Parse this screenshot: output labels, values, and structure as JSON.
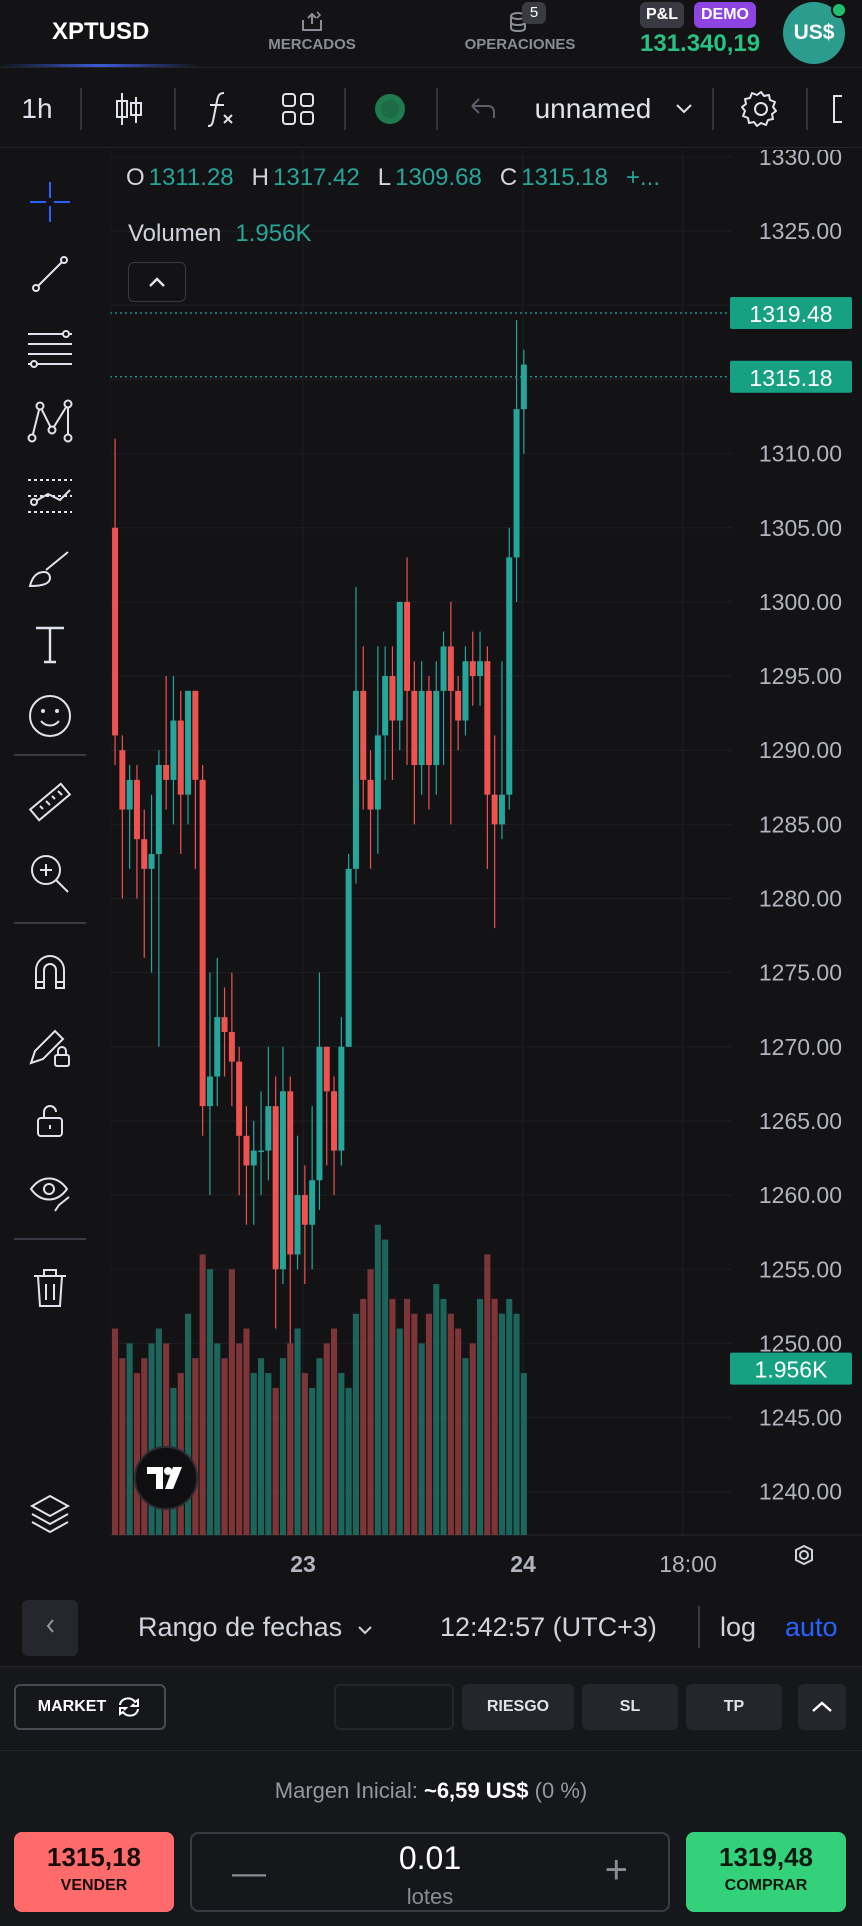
{
  "header": {
    "symbol": "XPTUSD",
    "tabs": [
      {
        "label": "MERCADOS",
        "icon": "markets-icon"
      },
      {
        "label": "OPERACIONES",
        "icon": "operations-icon",
        "badge": "5"
      }
    ],
    "pl_label": "P&L",
    "demo_label": "DEMO",
    "balance": "131.340,19",
    "currency_avatar": "US$"
  },
  "toolbar": {
    "interval": "1h",
    "layout_name": "unnamed"
  },
  "legend": {
    "o_label": "O",
    "o_value": "1311.28",
    "h_label": "H",
    "h_value": "1317.42",
    "l_label": "L",
    "l_value": "1309.68",
    "c_label": "C",
    "c_value": "1315.18",
    "more": "+...",
    "volume_label": "Volumen",
    "volume_value": "1.956K"
  },
  "price_tags": {
    "ask": "1319.48",
    "last": "1315.18",
    "volume": "1.956K"
  },
  "bottom_bar": {
    "date_range": "Rango de fechas",
    "clock": "12:42:57 (UTC+3)",
    "log": "log",
    "auto": "auto"
  },
  "order_panel": {
    "market_label": "MARKET",
    "riesgo_label": "RIESGO",
    "sl_label": "SL",
    "tp_label": "TP",
    "margin_label": "Margen Inicial:",
    "margin_value": "~6,59 US$",
    "margin_pct": "(0 %)",
    "sell_price": "1315,18",
    "sell_label": "VENDER",
    "buy_price": "1319,48",
    "buy_label": "COMPRAR",
    "quantity": "0.01",
    "quantity_unit": "lotes"
  },
  "colors": {
    "up": "#26a69a",
    "down": "#ef5350",
    "volume_up": "#1f6e63",
    "volume_down": "#8a3a3c",
    "accent_blue": "#2962ff",
    "balance_green": "#26c281",
    "sell_bg": "#ff6b6b",
    "buy_bg": "#33d17a"
  },
  "chart_data": {
    "type": "candlestick",
    "y_ticks": [
      "1330.00",
      "1325.00",
      "1310.00",
      "1305.00",
      "1300.00",
      "1295.00",
      "1290.00",
      "1285.00",
      "1280.00",
      "1275.00",
      "1270.00",
      "1265.00",
      "1260.00",
      "1255.00",
      "1250.00",
      "1245.00",
      "1240.00"
    ],
    "x_ticks": [
      "23",
      "24",
      "18:00"
    ],
    "ylim": [
      1239,
      1331
    ],
    "candles": [
      [
        1305,
        1291,
        1311,
        1289
      ],
      [
        1290,
        1286,
        1291,
        1280
      ],
      [
        1286,
        1288,
        1289,
        1282
      ],
      [
        1288,
        1284,
        1289,
        1280
      ],
      [
        1284,
        1282,
        1286,
        1276
      ],
      [
        1282,
        1283,
        1287,
        1275
      ],
      [
        1283,
        1289,
        1290,
        1270
      ],
      [
        1289,
        1288,
        1295,
        1286
      ],
      [
        1288,
        1292,
        1295,
        1285
      ],
      [
        1292,
        1287,
        1294,
        1283
      ],
      [
        1287,
        1294,
        1294,
        1285
      ],
      [
        1294,
        1288,
        1294,
        1282
      ],
      [
        1288,
        1266,
        1289,
        1264
      ],
      [
        1266,
        1268,
        1275,
        1260
      ],
      [
        1268,
        1272,
        1276,
        1266
      ],
      [
        1272,
        1271,
        1274,
        1268
      ],
      [
        1271,
        1269,
        1275,
        1266
      ],
      [
        1269,
        1264,
        1270,
        1260
      ],
      [
        1264,
        1262,
        1266,
        1258
      ],
      [
        1262,
        1263,
        1265,
        1258
      ],
      [
        1263,
        1263,
        1267,
        1260
      ],
      [
        1263,
        1266,
        1270,
        1261
      ],
      [
        1266,
        1255,
        1268,
        1251
      ],
      [
        1255,
        1267,
        1270,
        1254
      ],
      [
        1267,
        1256,
        1268,
        1250
      ],
      [
        1256,
        1260,
        1264,
        1255
      ],
      [
        1260,
        1258,
        1262,
        1254
      ],
      [
        1258,
        1261,
        1266,
        1255
      ],
      [
        1261,
        1270,
        1275,
        1259
      ],
      [
        1270,
        1267,
        1270,
        1262
      ],
      [
        1267,
        1263,
        1268,
        1260
      ],
      [
        1263,
        1270,
        1272,
        1262
      ],
      [
        1270,
        1282,
        1283,
        1270
      ],
      [
        1282,
        1294,
        1301,
        1281
      ],
      [
        1294,
        1288,
        1297,
        1286
      ],
      [
        1288,
        1286,
        1290,
        1282
      ],
      [
        1286,
        1291,
        1297,
        1283
      ],
      [
        1291,
        1295,
        1297,
        1288
      ],
      [
        1295,
        1292,
        1297,
        1288
      ],
      [
        1292,
        1300,
        1300,
        1290
      ],
      [
        1300,
        1294,
        1303,
        1289
      ],
      [
        1294,
        1289,
        1296,
        1285
      ],
      [
        1289,
        1294,
        1296,
        1287
      ],
      [
        1294,
        1289,
        1295,
        1286
      ],
      [
        1289,
        1294,
        1296,
        1287
      ],
      [
        1294,
        1297,
        1298,
        1289
      ],
      [
        1297,
        1294,
        1300,
        1285
      ],
      [
        1294,
        1292,
        1295,
        1290
      ],
      [
        1292,
        1296,
        1297,
        1291
      ],
      [
        1296,
        1295,
        1298,
        1293
      ],
      [
        1295,
        1296,
        1298,
        1293
      ],
      [
        1296,
        1287,
        1297,
        1282
      ],
      [
        1287,
        1285,
        1291,
        1278
      ],
      [
        1285,
        1287,
        1296,
        1284
      ],
      [
        1287,
        1303,
        1305,
        1286
      ],
      [
        1303,
        1313,
        1319,
        1300
      ],
      [
        1313,
        1316,
        1317,
        1310
      ]
    ],
    "volumes": [
      1251,
      1249,
      1250,
      1248,
      1249,
      1250,
      1251,
      1250,
      1247,
      1248,
      1252,
      1249,
      1256,
      1255,
      1250,
      1249,
      1255,
      1250,
      1251,
      1248,
      1249,
      1248,
      1247,
      1249,
      1250,
      1251,
      1248,
      1247,
      1249,
      1250,
      1251,
      1248,
      1247,
      1252,
      1253,
      1255,
      1258,
      1257,
      1253,
      1251,
      1253,
      1252,
      1250,
      1252,
      1254,
      1253,
      1252,
      1251,
      1249,
      1250,
      1253,
      1256,
      1253,
      1252,
      1253,
      1252,
      1248
    ]
  }
}
